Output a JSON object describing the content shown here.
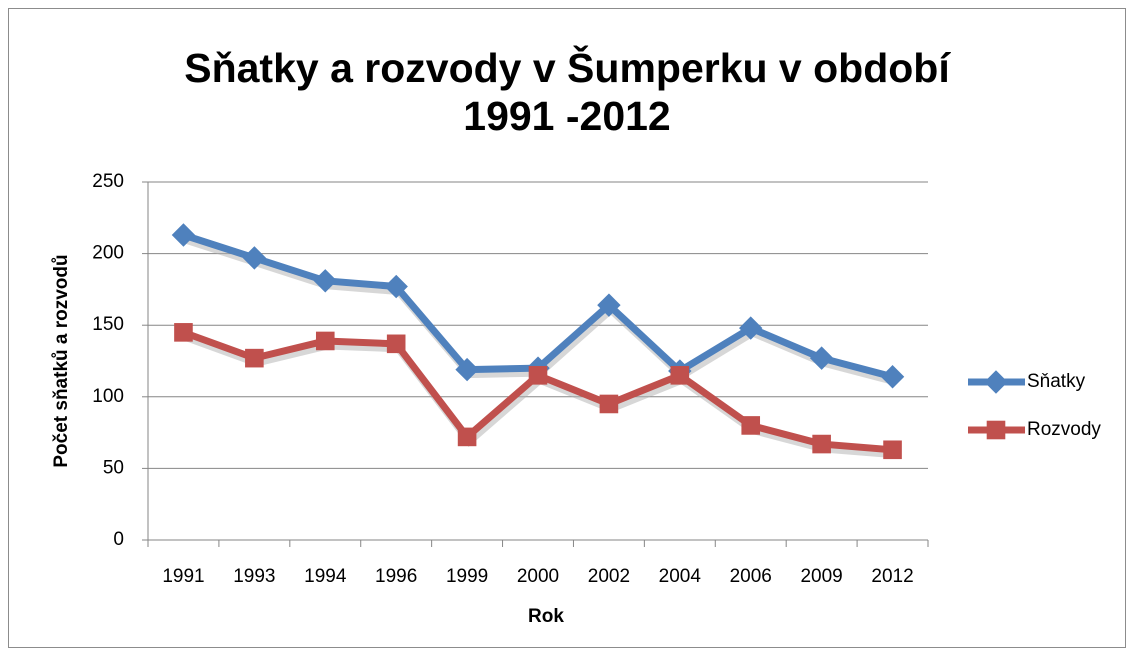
{
  "chart_data": {
    "type": "line",
    "title": "Sňatky a rozvody v Šumperku v období\n1991 -2012",
    "xlabel": "Rok",
    "ylabel": "Počet sňatků a rozvodů",
    "categories": [
      "1991",
      "1993",
      "1994",
      "1996",
      "1999",
      "2000",
      "2002",
      "2004",
      "2006",
      "2009",
      "2012"
    ],
    "series": [
      {
        "name": "Sňatky",
        "color": "#4f81bd",
        "marker": "diamond",
        "values": [
          213,
          197,
          181,
          177,
          119,
          120,
          164,
          118,
          148,
          127,
          114
        ]
      },
      {
        "name": "Rozvody",
        "color": "#c0504d",
        "marker": "square",
        "values": [
          145,
          127,
          139,
          137,
          72,
          115,
          95,
          115,
          80,
          67,
          63
        ]
      }
    ],
    "ylim": [
      0,
      250
    ],
    "yticks": [
      0,
      50,
      100,
      150,
      200,
      250
    ],
    "grid": true,
    "legend": "right"
  }
}
